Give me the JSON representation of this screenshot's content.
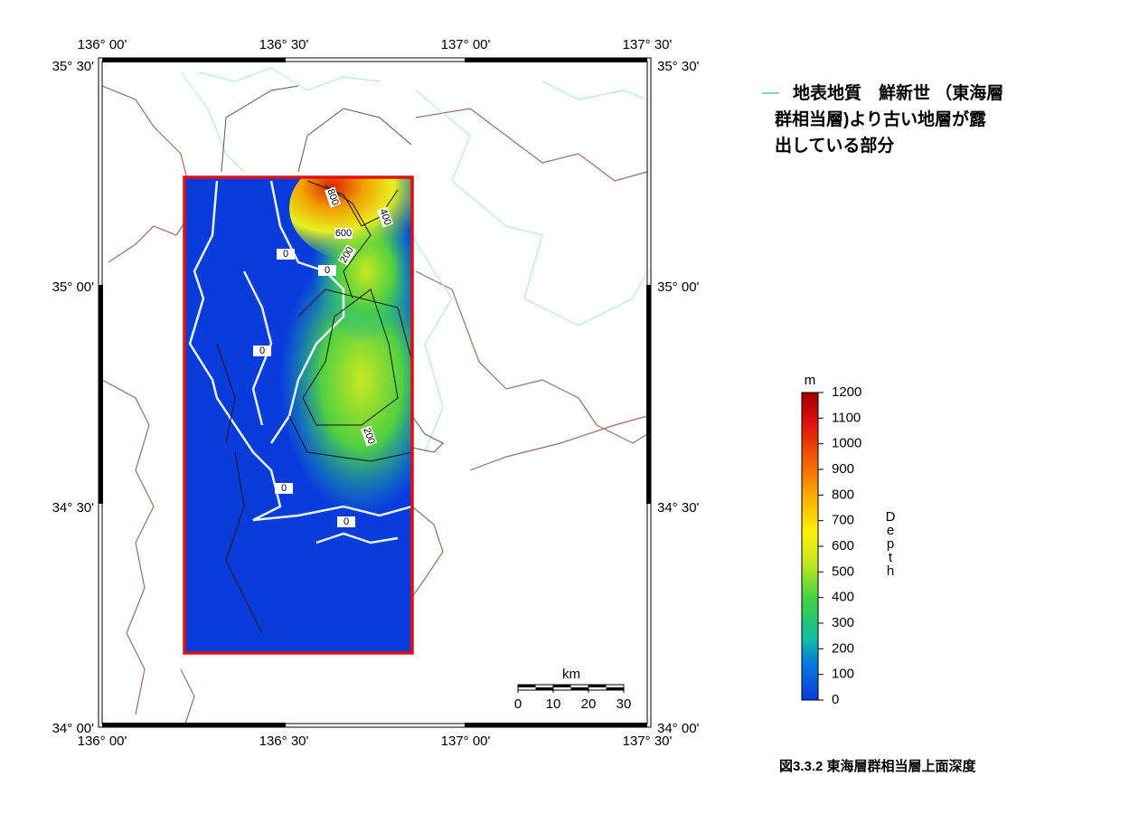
{
  "lon_labels": [
    "136° 00'",
    "136° 30'",
    "137° 00'",
    "137° 30'"
  ],
  "lat_labels": [
    "35° 30'",
    "35° 00'",
    "34° 30'",
    "34° 00'"
  ],
  "legend": {
    "lines": [
      "地表地質　鮮新世 （東海層",
      "群相当層)より古い地層が露",
      "出している部分"
    ]
  },
  "colorbar": {
    "unit": "m",
    "title": "Depth",
    "ticks": [
      0,
      100,
      200,
      300,
      400,
      500,
      600,
      700,
      800,
      900,
      1000,
      1100,
      1200
    ]
  },
  "scale_bar": {
    "unit": "km",
    "ticks": [
      0,
      10,
      20,
      30
    ]
  },
  "contour_labels": [
    "800",
    "400",
    "600",
    "200",
    "0",
    "0",
    "0",
    "200",
    "0",
    "0"
  ],
  "caption": "図3.3.2  東海層群相当層上面深度"
}
